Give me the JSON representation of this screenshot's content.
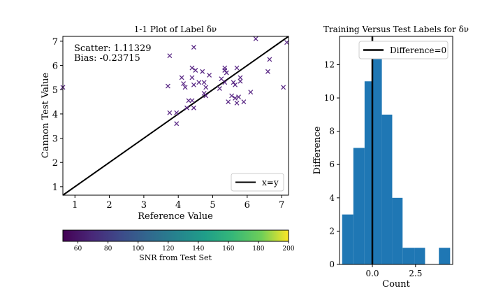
{
  "chart_data": [
    {
      "type": "scatter",
      "title": "1-1 Plot of Label δν",
      "xlabel": "Reference Value",
      "ylabel": "Cannon Test Value",
      "xlim": [
        0.65,
        7.2
      ],
      "ylim": [
        0.65,
        7.2
      ],
      "xticks": [
        1,
        2,
        3,
        4,
        5,
        6,
        7
      ],
      "yticks": [
        1,
        2,
        3,
        4,
        5,
        6,
        7
      ],
      "annotations": {
        "scatter": "Scatter: 1.11329",
        "bias": "Bias: -0.23715"
      },
      "legend": {
        "label": "x=y",
        "placement": "lower-right"
      },
      "line": {
        "name": "x=y",
        "from": [
          0.65,
          0.65
        ],
        "to": [
          7.2,
          7.2
        ],
        "color": "#000000"
      },
      "marker": "x",
      "marker_color": "#5b2a86",
      "points": [
        [
          0.65,
          5.1
        ],
        [
          3.75,
          6.4
        ],
        [
          4.45,
          6.75
        ],
        [
          6.25,
          7.1
        ],
        [
          7.15,
          6.95
        ],
        [
          6.65,
          6.25
        ],
        [
          6.6,
          5.75
        ],
        [
          5.7,
          5.9
        ],
        [
          5.35,
          5.9
        ],
        [
          5.4,
          5.7
        ],
        [
          5.35,
          5.8
        ],
        [
          4.4,
          5.9
        ],
        [
          4.5,
          5.8
        ],
        [
          4.7,
          5.75
        ],
        [
          4.1,
          5.5
        ],
        [
          4.4,
          5.5
        ],
        [
          4.9,
          5.6
        ],
        [
          5.25,
          5.45
        ],
        [
          5.8,
          5.5
        ],
        [
          5.8,
          5.35
        ],
        [
          5.6,
          5.3
        ],
        [
          5.65,
          5.2
        ],
        [
          5.35,
          5.3
        ],
        [
          4.6,
          5.3
        ],
        [
          4.75,
          5.3
        ],
        [
          4.45,
          5.2
        ],
        [
          4.15,
          5.25
        ],
        [
          4.2,
          5.1
        ],
        [
          3.7,
          5.15
        ],
        [
          4.8,
          5.1
        ],
        [
          5.2,
          5.05
        ],
        [
          6.1,
          4.9
        ],
        [
          7.05,
          5.1
        ],
        [
          4.75,
          4.85
        ],
        [
          4.8,
          4.75
        ],
        [
          5.55,
          4.75
        ],
        [
          5.75,
          4.7
        ],
        [
          5.65,
          4.65
        ],
        [
          4.3,
          4.55
        ],
        [
          4.4,
          4.55
        ],
        [
          5.45,
          4.5
        ],
        [
          5.7,
          4.45
        ],
        [
          5.9,
          4.5
        ],
        [
          4.25,
          4.25
        ],
        [
          4.45,
          4.25
        ],
        [
          3.75,
          4.05
        ],
        [
          3.95,
          4.05
        ],
        [
          3.95,
          3.6
        ]
      ]
    },
    {
      "type": "bar",
      "title": "Training Versus Test Labels for δν",
      "xlabel": "Count",
      "ylabel": "Difference",
      "xlim": [
        -1.9,
        4.65
      ],
      "ylim": [
        0,
        13.7
      ],
      "xticks": [
        0.0,
        2.5
      ],
      "xtick_labels": [
        "0.0",
        "2.5"
      ],
      "yticks": [
        0,
        2,
        4,
        6,
        8,
        10,
        12
      ],
      "bar_color": "#1f77b4",
      "bins": [
        {
          "from": -1.75,
          "to": -1.1,
          "value": 3
        },
        {
          "from": -1.1,
          "to": -0.45,
          "value": 7
        },
        {
          "from": -0.45,
          "to": 0.0,
          "value": 11
        },
        {
          "from": 0.0,
          "to": 0.55,
          "value": 13
        },
        {
          "from": 0.55,
          "to": 1.15,
          "value": 9
        },
        {
          "from": 1.15,
          "to": 1.75,
          "value": 4
        },
        {
          "from": 1.75,
          "to": 2.45,
          "value": 1
        },
        {
          "from": 2.45,
          "to": 3.05,
          "value": 1
        },
        {
          "from": 3.05,
          "to": 3.85,
          "value": 0
        },
        {
          "from": 3.85,
          "to": 4.5,
          "value": 1
        }
      ],
      "vline": {
        "x": 0,
        "name": "Difference=0",
        "color": "#000000"
      },
      "legend": {
        "label": "Difference=0",
        "placement": "top-right"
      }
    }
  ],
  "colorbar": {
    "label": "SNR from Test Set",
    "range": [
      50,
      200
    ],
    "ticks": [
      60,
      80,
      100,
      120,
      140,
      160,
      180,
      200
    ],
    "colormap": "viridis"
  }
}
